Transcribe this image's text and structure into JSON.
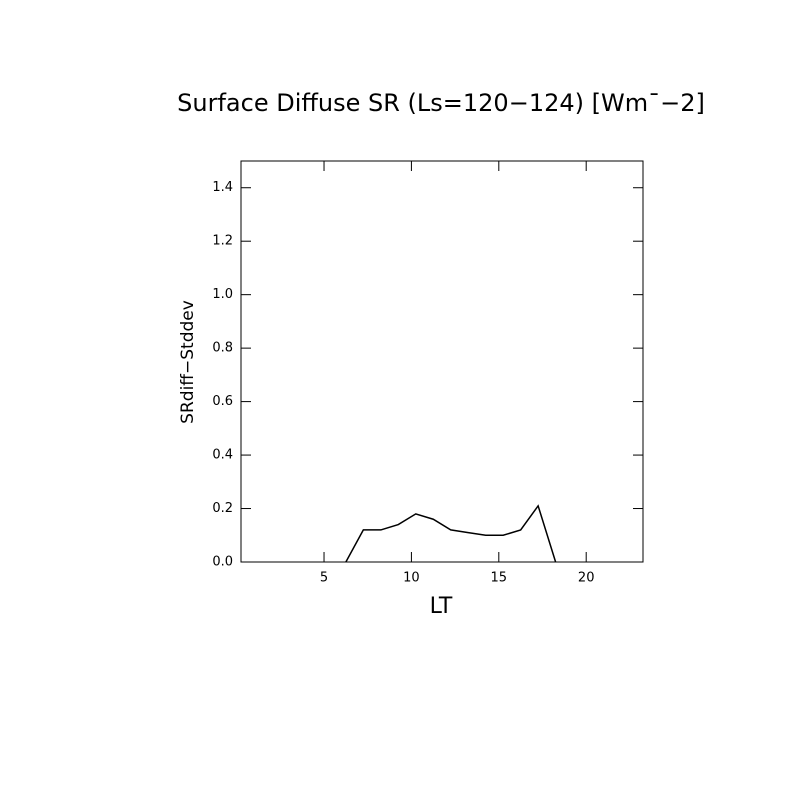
{
  "chart_data": {
    "type": "line",
    "title": "Surface Diffuse SR (Ls=120−124) [Wm¯−2]",
    "xlabel": "LT",
    "ylabel": "SRdiff−Stddev",
    "x": [
      6.25,
      7.25,
      8.25,
      9.25,
      10.25,
      11.25,
      12.25,
      13.25,
      14.25,
      15.25,
      16.25,
      17.25,
      18.25
    ],
    "values": [
      0,
      0.12,
      0.12,
      0.14,
      0.18,
      0.16,
      0.12,
      0.11,
      0.1,
      0.1,
      0.12,
      0.21,
      0
    ],
    "color": "#000000",
    "xlim": [
      0.25,
      23.25
    ],
    "xticks": [
      5,
      10,
      15,
      20
    ],
    "ylim": [
      0,
      1.5
    ],
    "yticks": [
      {
        "value": 0,
        "label": "0.0"
      },
      0.2,
      0.4,
      0.6,
      0.8,
      {
        "value": 1,
        "label": "1.0"
      },
      1.2,
      1.4
    ]
  }
}
